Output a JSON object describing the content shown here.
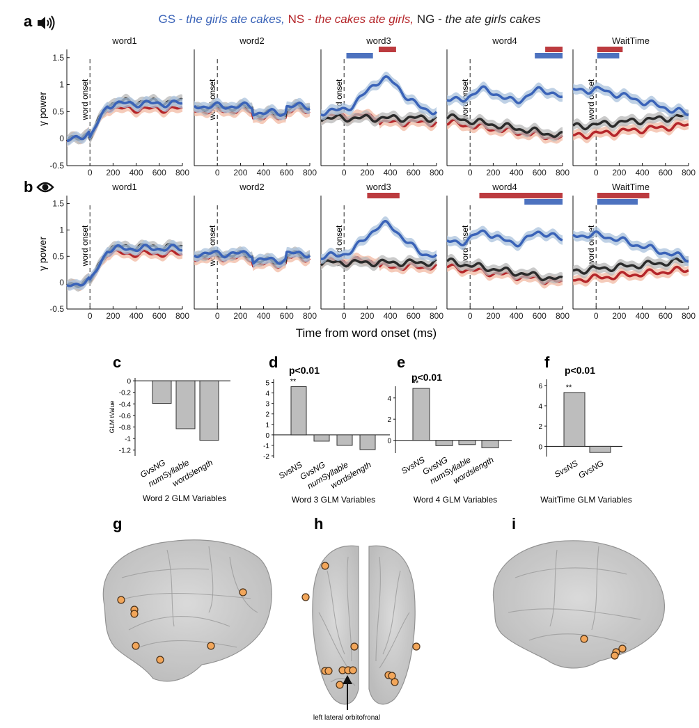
{
  "legend": {
    "gs_code": "GS",
    "gs_text": "the girls ate cakes,",
    "ns_code": "NS",
    "ns_text": "the cakes ate girls,",
    "ng_code": "NG",
    "ng_text": "the ate girls cakes",
    "sep": " - ",
    "colors": {
      "gs": "#3a63b8",
      "ns": "#b5262a",
      "ng": "#2b2b2b"
    }
  },
  "row_a": {
    "letter": "a",
    "icon": "speaker-icon"
  },
  "row_b": {
    "letter": "b",
    "icon": "eye-icon"
  },
  "line_panels": {
    "titles": [
      "word1",
      "word2",
      "word3",
      "word4",
      "WaitTime"
    ],
    "ylabel": "γ power",
    "onset_label": "word onset",
    "xlabel": "Time from word onset (ms)",
    "xticks": [
      0,
      200,
      400,
      600,
      800
    ],
    "yticks": [
      -0.5,
      0,
      0.5,
      1,
      1.5
    ],
    "yticklabels": [
      "-0.5",
      "0",
      "0.5",
      "1",
      "1.5"
    ],
    "xlim": [
      -200,
      800
    ],
    "ylim": [
      -0.5,
      1.6
    ]
  },
  "bar_panels": [
    {
      "letter": "c",
      "xlabel": "Word 2 GLM Variables",
      "ylabel": "GLM tValue",
      "sig": "",
      "stars": "",
      "categories": [
        "GvsNG",
        "numSyllable",
        "wordslength"
      ],
      "values": [
        -0.39,
        -0.83,
        -1.03
      ],
      "yticks": [
        "0",
        "-0.2",
        "-0.4",
        "-0.6",
        "-0.8",
        "-1",
        "-1.2"
      ]
    },
    {
      "letter": "d",
      "xlabel": "Word 3 GLM Variables",
      "ylabel": "",
      "sig": "p<0.01",
      "stars": "**",
      "categories": [
        "SvsNS",
        "GvsNG",
        "numSyllable",
        "wordslength"
      ],
      "values": [
        4.6,
        -0.6,
        -1.0,
        -1.4
      ],
      "yticks": [
        "5",
        "4",
        "3",
        "2",
        "1",
        "0",
        "-1",
        "-2"
      ]
    },
    {
      "letter": "e",
      "xlabel": "Word 4 GLM Variables",
      "ylabel": "",
      "sig": "p<0.01",
      "stars": "**",
      "categories": [
        "SvsNS",
        "GvsNG",
        "numSyllable",
        "wordslength"
      ],
      "values": [
        4.9,
        -0.5,
        -0.4,
        -0.7
      ],
      "yticks": [
        "4",
        "2",
        "0"
      ]
    },
    {
      "letter": "f",
      "xlabel": "WaitTime GLM Variables",
      "ylabel": "",
      "sig": "p<0.01",
      "stars": "**",
      "categories": [
        "SvsNS",
        "GvsNG"
      ],
      "values": [
        5.3,
        -0.6
      ],
      "yticks": [
        "6",
        "4",
        "2",
        "0"
      ]
    }
  ],
  "brain_panels": {
    "letters": [
      "g",
      "h",
      "i"
    ],
    "annotation": "left lateral orbitofronal"
  }
}
